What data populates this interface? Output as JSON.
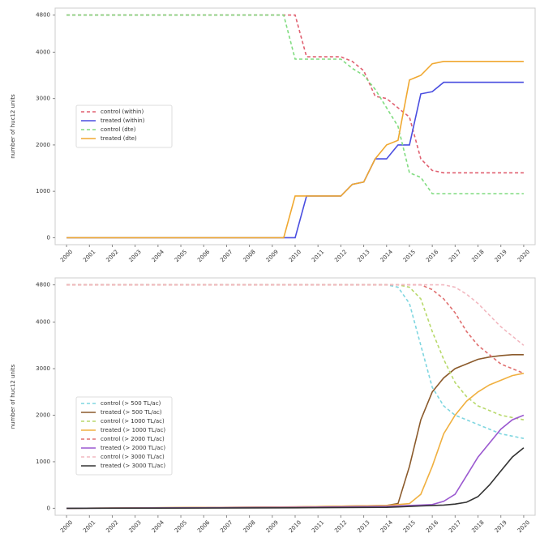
{
  "chart_data": [
    {
      "type": "line",
      "ylabel": "number of huc12 units",
      "legend": "center left",
      "grid": false,
      "xlim": [
        1999.5,
        2020.5
      ],
      "ylim": [
        -150,
        4950
      ],
      "xticks": [
        2000,
        2001,
        2002,
        2003,
        2004,
        2005,
        2006,
        2007,
        2008,
        2009,
        2010,
        2011,
        2012,
        2013,
        2014,
        2015,
        2016,
        2017,
        2018,
        2019,
        2020
      ],
      "yticks": [
        0,
        1000,
        2000,
        3000,
        4000,
        4800
      ],
      "x": [
        2000,
        2009.5,
        2010,
        2010.5,
        2011,
        2011.5,
        2012,
        2012.5,
        2013,
        2013.5,
        2014,
        2014.5,
        2015,
        2015.5,
        2016,
        2016.5,
        2017,
        2018,
        2019,
        2020
      ],
      "series": [
        {
          "name": "control (within)",
          "color": "#e06070",
          "dashed": true,
          "values": [
            4800,
            4800,
            4800,
            3900,
            3900,
            3900,
            3900,
            3800,
            3600,
            3050,
            3000,
            2800,
            2600,
            1700,
            1450,
            1400,
            1400,
            1400,
            1400,
            1400
          ]
        },
        {
          "name": "treated (within)",
          "color": "#4a4ee0",
          "dashed": false,
          "values": [
            0,
            0,
            0,
            900,
            900,
            900,
            900,
            1150,
            1200,
            1700,
            1700,
            2000,
            2000,
            3100,
            3150,
            3350,
            3350,
            3350,
            3350,
            3350
          ]
        },
        {
          "name": "control (dte)",
          "color": "#80dc80",
          "dashed": true,
          "values": [
            4800,
            4800,
            3850,
            3850,
            3850,
            3850,
            3850,
            3650,
            3500,
            3200,
            2800,
            2400,
            1400,
            1300,
            950,
            950,
            950,
            950,
            950,
            950
          ]
        },
        {
          "name": "treated (dte)",
          "color": "#f0a830",
          "dashed": false,
          "values": [
            0,
            0,
            900,
            900,
            900,
            900,
            900,
            1150,
            1200,
            1700,
            2000,
            2100,
            3400,
            3500,
            3750,
            3800,
            3800,
            3800,
            3800,
            3800
          ]
        }
      ]
    },
    {
      "type": "line",
      "ylabel": "number of huc12 units",
      "legend": "lower left",
      "grid": false,
      "xlim": [
        1999.5,
        2020.5
      ],
      "ylim": [
        -150,
        4950
      ],
      "xticks": [
        2000,
        2001,
        2002,
        2003,
        2004,
        2005,
        2006,
        2007,
        2008,
        2009,
        2010,
        2011,
        2012,
        2013,
        2014,
        2015,
        2016,
        2017,
        2018,
        2019,
        2020
      ],
      "yticks": [
        0,
        1000,
        2000,
        3000,
        4000,
        4800
      ],
      "x": [
        2000,
        2010,
        2014,
        2014.5,
        2015,
        2015.5,
        2016,
        2016.5,
        2017,
        2017.5,
        2018,
        2018.5,
        2019,
        2019.5,
        2020
      ],
      "series": [
        {
          "name": "control (> 500 TL/ac)",
          "color": "#7fd6e0",
          "dashed": true,
          "values": [
            4800,
            4800,
            4800,
            4750,
            4400,
            3500,
            2600,
            2200,
            2000,
            1900,
            1800,
            1700,
            1600,
            1550,
            1500
          ]
        },
        {
          "name": "treated (> 500 TL/ac)",
          "color": "#8b5a2b",
          "dashed": false,
          "values": [
            0,
            30,
            60,
            100,
            900,
            1900,
            2500,
            2800,
            3000,
            3100,
            3200,
            3250,
            3280,
            3300,
            3300
          ]
        },
        {
          "name": "control (> 1000 TL/ac)",
          "color": "#b8d96b",
          "dashed": true,
          "values": [
            4800,
            4800,
            4800,
            4800,
            4750,
            4500,
            3800,
            3200,
            2700,
            2400,
            2200,
            2100,
            2000,
            1950,
            1900
          ]
        },
        {
          "name": "treated (> 1000 TL/ac)",
          "color": "#f0b040",
          "dashed": false,
          "values": [
            0,
            30,
            60,
            80,
            100,
            300,
            900,
            1600,
            2000,
            2300,
            2500,
            2650,
            2750,
            2850,
            2900
          ]
        },
        {
          "name": "control (> 2000 TL/ac)",
          "color": "#e07070",
          "dashed": true,
          "values": [
            4800,
            4800,
            4800,
            4800,
            4800,
            4800,
            4700,
            4500,
            4200,
            3800,
            3500,
            3300,
            3100,
            3000,
            2900
          ]
        },
        {
          "name": "treated (> 2000 TL/ac)",
          "color": "#9b59d0",
          "dashed": false,
          "values": [
            0,
            20,
            40,
            50,
            60,
            70,
            80,
            150,
            300,
            700,
            1100,
            1400,
            1700,
            1900,
            2000
          ]
        },
        {
          "name": "control (> 3000 TL/ac)",
          "color": "#f2b8c0",
          "dashed": true,
          "values": [
            4800,
            4800,
            4800,
            4800,
            4800,
            4800,
            4800,
            4800,
            4750,
            4600,
            4400,
            4150,
            3900,
            3700,
            3500
          ]
        },
        {
          "name": "treated (> 3000 TL/ac)",
          "color": "#333333",
          "dashed": false,
          "values": [
            0,
            10,
            20,
            30,
            40,
            50,
            60,
            70,
            90,
            130,
            250,
            500,
            800,
            1100,
            1300
          ]
        }
      ]
    }
  ]
}
